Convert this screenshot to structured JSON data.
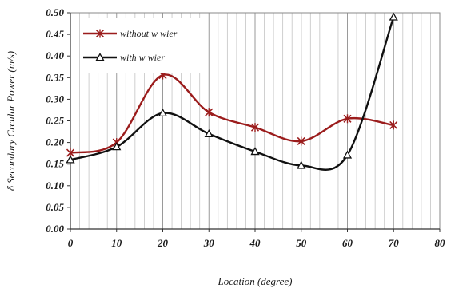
{
  "chart_data": {
    "type": "line",
    "title": "",
    "xlabel": "Location (degree)",
    "ylabel": "δ Secondary Crcular Power (m/s)",
    "xlim": [
      0,
      80
    ],
    "ylim": [
      0.0,
      0.5
    ],
    "x_ticks": [
      "0",
      "10",
      "20",
      "30",
      "40",
      "50",
      "60",
      "70",
      "80"
    ],
    "y_ticks": [
      "0.00",
      "0.05",
      "0.10",
      "0.15",
      "0.20",
      "0.25",
      "0.30",
      "0.35",
      "0.40",
      "0.45",
      "0.50"
    ],
    "grid": "vertical",
    "legend_position": "top-left",
    "series": [
      {
        "name": "without w wier",
        "color": "#9b1c1c",
        "marker": "star",
        "x": [
          0,
          10,
          20,
          30,
          40,
          50,
          60,
          70
        ],
        "values": [
          0.176,
          0.2,
          0.356,
          0.27,
          0.235,
          0.203,
          0.255,
          0.24
        ]
      },
      {
        "name": "with w wier",
        "color": "#111111",
        "marker": "triangle",
        "x": [
          0,
          10,
          20,
          30,
          40,
          50,
          60,
          70
        ],
        "values": [
          0.16,
          0.19,
          0.268,
          0.22,
          0.179,
          0.147,
          0.171,
          0.49
        ]
      }
    ]
  }
}
